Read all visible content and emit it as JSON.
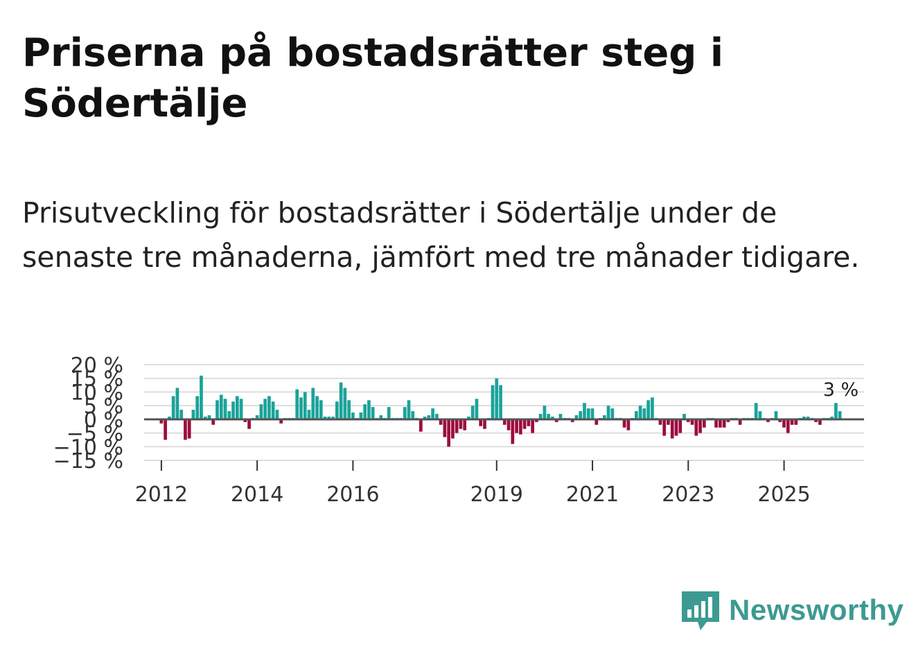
{
  "title": "Priserna på bostadsrätter steg i Södertälje",
  "subtitle": "Prisutveckling för bostadsrätter i Södertälje under de senaste tre månaderna, jämfört med tre månader tidigare.",
  "brand": {
    "name": "Newsworthy",
    "icon": "newsworthy-logo-icon"
  },
  "colors": {
    "positive": "#1aa39a",
    "negative": "#9b0d3e",
    "grid": "#dddddd",
    "zero_line": "#555555",
    "brand": "#3d9a92"
  },
  "chart_data": {
    "type": "bar",
    "title": "Priserna på bostadsrätter steg i Södertälje",
    "xlabel": "",
    "ylabel": "",
    "unit": "%",
    "ylim": [
      -15,
      20
    ],
    "yticks": [
      20,
      15,
      10,
      5,
      0,
      -5,
      -10,
      -15
    ],
    "ytick_labels": [
      "20 %",
      "15 %",
      "10 %",
      "5 %",
      "0 %",
      "−5 %",
      "−10 %",
      "−15 %"
    ],
    "xticks": [
      2012,
      2014,
      2016,
      2019,
      2021,
      2023,
      2025
    ],
    "xtick_labels": [
      "2012",
      "2014",
      "2016",
      "2019",
      "2021",
      "2023",
      "2025"
    ],
    "x_start": 2012,
    "x_step": 0.08333,
    "values": [
      -1.5,
      -7.5,
      1.0,
      8.5,
      11.5,
      3.5,
      -7.5,
      -7.0,
      3.5,
      8.5,
      16.0,
      1.0,
      1.5,
      -2.0,
      7.0,
      9.0,
      7.5,
      3.0,
      6.5,
      8.5,
      7.5,
      -1.0,
      -3.5,
      0.5,
      1.5,
      5.5,
      7.5,
      8.5,
      6.5,
      3.5,
      -1.5,
      0.5,
      0.5,
      0.5,
      11.0,
      8.0,
      10.0,
      3.5,
      11.5,
      8.5,
      7.0,
      1.0,
      1.0,
      1.0,
      6.5,
      13.5,
      11.5,
      7.0,
      2.5,
      0.5,
      2.5,
      5.5,
      7.0,
      4.5,
      0.5,
      1.5,
      0.5,
      4.5,
      0.5,
      0.5,
      0.5,
      4.5,
      7.0,
      3.0,
      0.5,
      -4.5,
      1.0,
      1.5,
      4.0,
      2.0,
      -2.0,
      -6.5,
      -10.0,
      -7.0,
      -5.0,
      -3.5,
      -4.0,
      1.0,
      5.0,
      7.5,
      -2.5,
      -3.5,
      0.5,
      12.5,
      15.0,
      12.5,
      -2.0,
      -4.0,
      -9.0,
      -5.0,
      -5.5,
      -3.5,
      -2.5,
      -5.0,
      -1.0,
      2.0,
      5.0,
      2.0,
      1.0,
      -1.0,
      2.0,
      0.5,
      0.5,
      -1.0,
      1.5,
      3.0,
      6.0,
      4.0,
      4.0,
      -2.0,
      0.5,
      1.5,
      5.0,
      4.0,
      0.5,
      0.5,
      -3.0,
      -4.0,
      0.5,
      3.0,
      5.0,
      4.0,
      7.0,
      8.0,
      0.5,
      -2.0,
      -6.0,
      -2.0,
      -7.0,
      -6.0,
      -5.0,
      2.0,
      -1.0,
      -2.0,
      -6.0,
      -5.0,
      -3.0,
      0.5,
      0.5,
      -3.0,
      -3.0,
      -3.0,
      -1.0,
      0.5,
      0.5,
      -2.0,
      0.5,
      0.5,
      0.5,
      6.0,
      3.0,
      0.5,
      -1.0,
      0.5,
      3.0,
      -1.0,
      -3.0,
      -5.0,
      -2.0,
      -2.0,
      0.5,
      1.0,
      1.0,
      0.5,
      -1.0,
      -2.0,
      0.5,
      0.5,
      1.0,
      6.0,
      3.0
    ],
    "last_value_label": "3 %"
  }
}
